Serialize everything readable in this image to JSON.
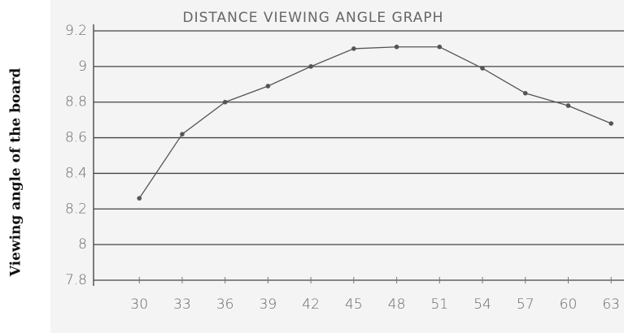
{
  "chart_data": {
    "type": "line",
    "title": "DISTANCE VIEWING ANGLE GRAPH",
    "y_label": "Viewing angle of the board",
    "x": [
      30,
      33,
      36,
      39,
      42,
      45,
      48,
      51,
      54,
      57,
      60,
      63
    ],
    "series": [
      {
        "name": "Viewing angle",
        "color": "#555555",
        "values": [
          8.26,
          8.62,
          8.8,
          8.89,
          9.0,
          9.1,
          9.11,
          9.11,
          8.99,
          8.85,
          8.78,
          8.68
        ]
      }
    ],
    "xlim": [
      26.8,
      63.9
    ],
    "xticks": [
      30,
      33,
      36,
      39,
      42,
      45,
      48,
      51,
      54,
      57,
      60,
      63
    ],
    "ylim": [
      7.8,
      9.2
    ],
    "yticks": [
      7.8,
      8,
      8.2,
      8.4,
      8.6,
      8.8,
      9,
      9.2
    ],
    "grid": true
  }
}
